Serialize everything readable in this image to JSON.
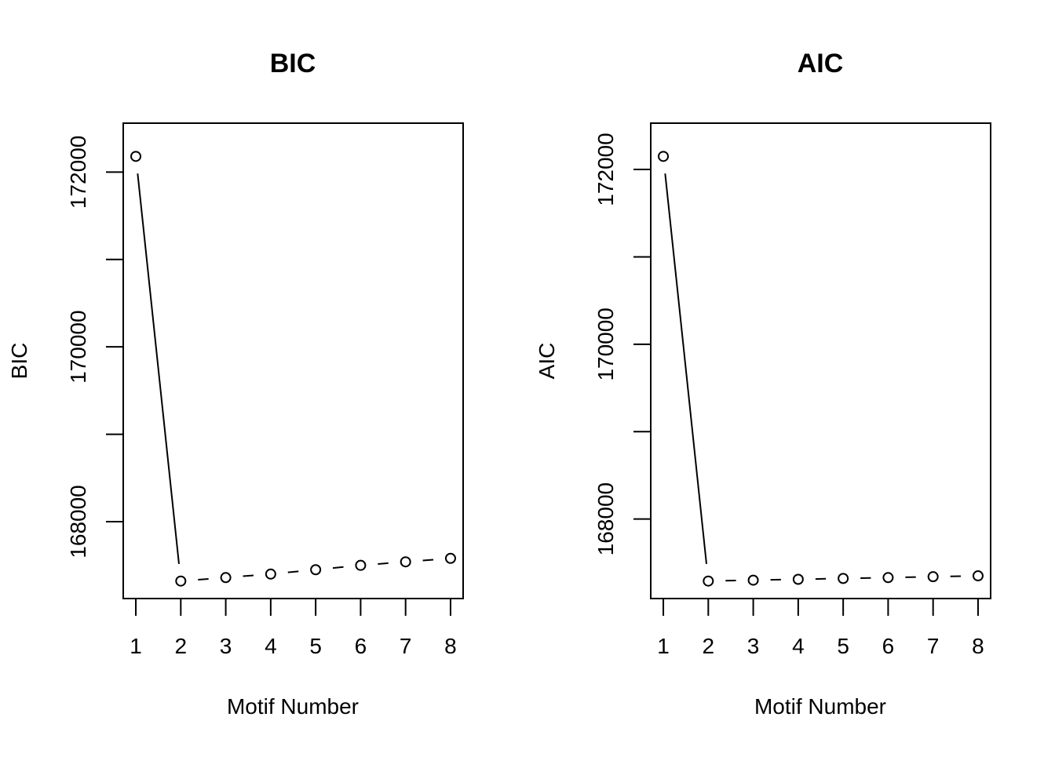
{
  "chart_data": [
    {
      "type": "line",
      "title": "BIC",
      "xlabel": "Motif Number",
      "ylabel": "BIC",
      "x": [
        1,
        2,
        3,
        4,
        5,
        6,
        7,
        8
      ],
      "y": [
        172180,
        167320,
        167360,
        167400,
        167450,
        167500,
        167540,
        167580
      ],
      "xticks": [
        "1",
        "2",
        "3",
        "4",
        "5",
        "6",
        "7",
        "8"
      ],
      "yticks": [
        168000,
        169000,
        170000,
        171000,
        172000
      ],
      "ytick_labels": [
        "168000",
        "",
        "170000",
        "",
        "172000"
      ],
      "xlim": [
        0.72,
        8.28
      ],
      "ylim": [
        167120,
        172560
      ],
      "markers": "open-circle",
      "line_style": "solid",
      "grid": false
    },
    {
      "type": "line",
      "title": "AIC",
      "xlabel": "Motif Number",
      "ylabel": "AIC",
      "x": [
        1,
        2,
        3,
        4,
        5,
        6,
        7,
        8
      ],
      "y": [
        172150,
        167290,
        167300,
        167310,
        167320,
        167330,
        167340,
        167350
      ],
      "xticks": [
        "1",
        "2",
        "3",
        "4",
        "5",
        "6",
        "7",
        "8"
      ],
      "yticks": [
        168000,
        169000,
        170000,
        171000,
        172000
      ],
      "ytick_labels": [
        "168000",
        "",
        "170000",
        "",
        "172000"
      ],
      "xlim": [
        0.72,
        8.28
      ],
      "ylim": [
        167090,
        172530
      ],
      "markers": "open-circle",
      "line_style": "solid",
      "grid": false
    }
  ]
}
